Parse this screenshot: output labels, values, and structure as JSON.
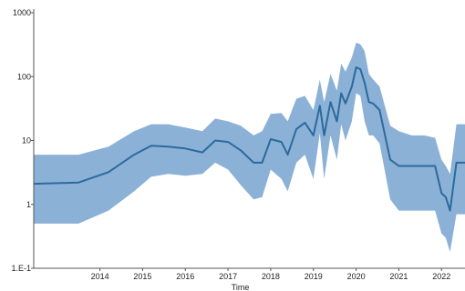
{
  "chart_data": {
    "type": "area",
    "y_scale": "log",
    "ylim": [
      0.1,
      1000
    ],
    "xlim": [
      2012.45,
      2022.55
    ],
    "grid": false,
    "title": "",
    "xlabel": "Time",
    "ylabel": "",
    "y_ticks": [
      {
        "value": 0.1,
        "label": "1.E-1"
      },
      {
        "value": 1,
        "label": "1"
      },
      {
        "value": 10,
        "label": "10"
      },
      {
        "value": 100,
        "label": "100"
      },
      {
        "value": 1000,
        "label": "1000"
      }
    ],
    "x_ticks": [
      {
        "value": 2014,
        "label": "2014"
      },
      {
        "value": 2015,
        "label": "2015"
      },
      {
        "value": 2016,
        "label": "2016"
      },
      {
        "value": 2017,
        "label": "2017"
      },
      {
        "value": 2018,
        "label": "2018"
      },
      {
        "value": 2019,
        "label": "2019"
      },
      {
        "value": 2020,
        "label": "2020"
      },
      {
        "value": 2021,
        "label": "2021"
      },
      {
        "value": 2022,
        "label": "2022"
      }
    ],
    "colors": {
      "line": "#2b6a9e",
      "band": "#7fa9d1",
      "axis": "#555555"
    },
    "series": [
      {
        "role": "median",
        "x": [
          2012.45,
          2013.5,
          2014.2,
          2014.8,
          2015.2,
          2015.6,
          2016.0,
          2016.4,
          2016.7,
          2017.0,
          2017.3,
          2017.6,
          2017.8,
          2018.0,
          2018.25,
          2018.4,
          2018.6,
          2018.8,
          2019.0,
          2019.15,
          2019.25,
          2019.4,
          2019.55,
          2019.65,
          2019.75,
          2019.9,
          2020.0,
          2020.1,
          2020.2,
          2020.3,
          2020.4,
          2020.55,
          2020.8,
          2021.0,
          2021.3,
          2021.6,
          2021.85,
          2022.0,
          2022.1,
          2022.2,
          2022.35,
          2022.55
        ],
        "y": [
          2.1,
          2.2,
          3.2,
          6.0,
          8.3,
          8.0,
          7.5,
          6.5,
          10.0,
          9.5,
          7.0,
          4.5,
          4.5,
          10.5,
          9.5,
          6.0,
          15.0,
          19.0,
          12.0,
          35.0,
          12.0,
          40.0,
          20.0,
          55.0,
          38.0,
          70.0,
          140.0,
          130.0,
          80.0,
          40.0,
          38.0,
          30.0,
          5.0,
          4.0,
          4.0,
          4.0,
          4.0,
          1.5,
          1.3,
          0.8,
          4.5,
          4.5
        ]
      },
      {
        "role": "upper_bound",
        "x": [
          2012.45,
          2013.5,
          2014.2,
          2014.8,
          2015.2,
          2015.6,
          2016.0,
          2016.4,
          2016.7,
          2017.0,
          2017.3,
          2017.6,
          2017.8,
          2018.0,
          2018.25,
          2018.4,
          2018.6,
          2018.8,
          2019.0,
          2019.15,
          2019.25,
          2019.4,
          2019.55,
          2019.65,
          2019.75,
          2019.9,
          2020.0,
          2020.1,
          2020.2,
          2020.3,
          2020.4,
          2020.55,
          2020.8,
          2021.0,
          2021.3,
          2021.6,
          2021.85,
          2022.0,
          2022.1,
          2022.2,
          2022.35,
          2022.55
        ],
        "y": [
          6.0,
          6.0,
          8.0,
          14.0,
          18.0,
          18.0,
          16.0,
          14.0,
          22.0,
          20.0,
          17.0,
          12.0,
          14.0,
          26.0,
          27.0,
          20.0,
          45.0,
          50.0,
          30.0,
          90.0,
          40.0,
          110.0,
          60.0,
          160.0,
          120.0,
          200.0,
          340.0,
          320.0,
          250.0,
          110.0,
          90.0,
          70.0,
          17.0,
          14.0,
          12.0,
          12.0,
          11.0,
          5.0,
          4.0,
          3.0,
          18.0,
          18.0
        ]
      },
      {
        "role": "lower_bound",
        "x": [
          2012.45,
          2013.5,
          2014.2,
          2014.8,
          2015.2,
          2015.6,
          2016.0,
          2016.4,
          2016.7,
          2017.0,
          2017.3,
          2017.6,
          2017.8,
          2018.0,
          2018.25,
          2018.4,
          2018.6,
          2018.8,
          2019.0,
          2019.15,
          2019.25,
          2019.4,
          2019.55,
          2019.65,
          2019.75,
          2019.9,
          2020.0,
          2020.1,
          2020.2,
          2020.3,
          2020.4,
          2020.55,
          2020.8,
          2021.0,
          2021.3,
          2021.6,
          2021.85,
          2022.0,
          2022.1,
          2022.2,
          2022.35,
          2022.55
        ],
        "y": [
          0.5,
          0.5,
          0.8,
          1.6,
          2.7,
          3.0,
          2.8,
          3.0,
          4.5,
          3.5,
          2.0,
          1.2,
          1.3,
          3.5,
          2.5,
          1.6,
          4.5,
          6.0,
          2.5,
          13.0,
          2.5,
          12.0,
          5.0,
          18.0,
          10.0,
          20.0,
          55.0,
          50.0,
          20.0,
          12.0,
          12.0,
          9.0,
          1.2,
          0.8,
          0.8,
          0.8,
          0.8,
          0.35,
          0.3,
          0.18,
          0.7,
          0.7
        ]
      }
    ]
  }
}
